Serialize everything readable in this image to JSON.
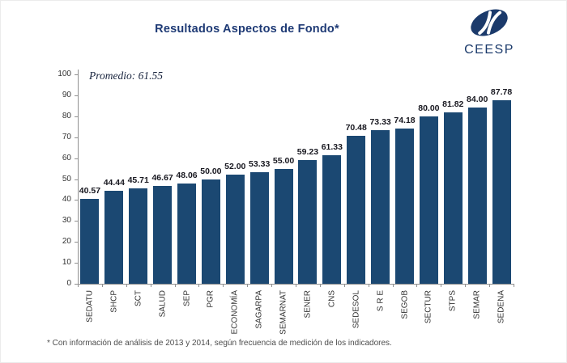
{
  "title": "Resultados Aspectos de Fondo*",
  "logo": {
    "text": "CEESP"
  },
  "annotation": "Promedio: 61.55",
  "footnote": "* Con información de análisis de 2013 y 2014, según frecuencia de medición de los indicadores.",
  "colors": {
    "bar": "#1b4872",
    "title": "#1e3a75",
    "logo": "#1b3a6b",
    "axis": "#909090",
    "value_label": "#181820",
    "tick_label": "#333333",
    "annotation": "#17233d",
    "footnote": "#4d4d4d"
  },
  "chart_data": {
    "type": "bar",
    "title": "Resultados Aspectos de Fondo*",
    "categories": [
      "SEDATU",
      "SHCP",
      "SCT",
      "SALUD",
      "SEP",
      "PGR",
      "ECONOMÍA",
      "SAGARPA",
      "SEMARNAT",
      "SENER",
      "CNS",
      "SEDESOL",
      "S R E",
      "SEGOB",
      "SECTUR",
      "STPS",
      "SEMAR",
      "SEDENA"
    ],
    "values": [
      40.57,
      44.44,
      45.71,
      46.67,
      48.06,
      50.0,
      52.0,
      53.33,
      55.0,
      59.23,
      61.33,
      70.48,
      73.33,
      74.18,
      80.0,
      81.82,
      84.0,
      87.78
    ],
    "value_label_decimals": 2,
    "xlabel": "",
    "ylabel": "",
    "ylim": [
      0,
      100
    ],
    "yticks": [
      0,
      10,
      20,
      30,
      40,
      50,
      60,
      70,
      80,
      90,
      100
    ],
    "grid": false,
    "legend": false,
    "annotation": "Promedio: 61.55"
  }
}
